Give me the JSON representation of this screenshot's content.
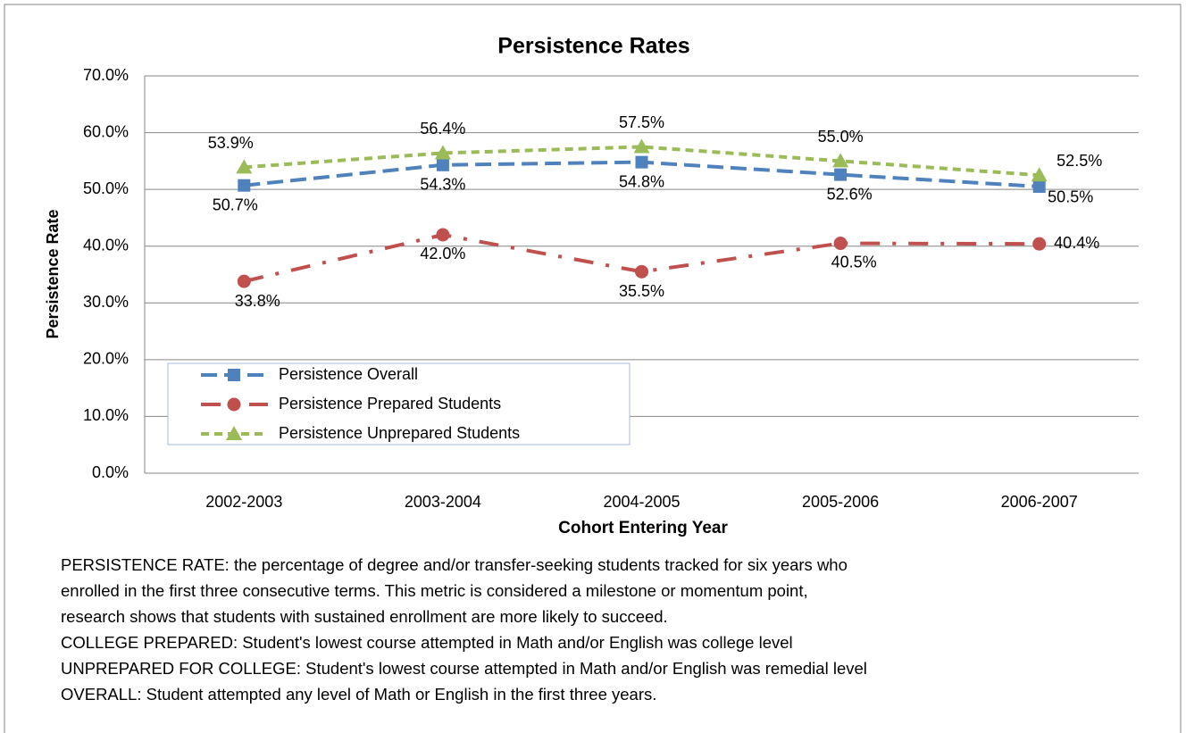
{
  "chart_data": {
    "type": "line",
    "title": "Persistence Rates",
    "y_label": "Persistence Rate",
    "x_label": "Cohort Entering Year",
    "categories": [
      "2002-2003",
      "2003-2004",
      "2004-2005",
      "2005-2006",
      "2006-2007"
    ],
    "series": [
      {
        "name": "Persistence Overall",
        "color": "#4f81bd",
        "values": [
          50.7,
          54.3,
          54.8,
          52.6,
          50.5
        ],
        "value_labels": [
          "50.7%",
          "54.3%",
          "54.8%",
          "52.6%",
          "50.5%"
        ]
      },
      {
        "name": "Persistence Prepared Students",
        "color": "#c0504d",
        "values": [
          33.8,
          42.0,
          35.5,
          40.5,
          40.4
        ],
        "value_labels": [
          "33.8%",
          "42.0%",
          "35.5%",
          "40.5%",
          "40.4%"
        ]
      },
      {
        "name": "Persistence Unprepared Students",
        "color": "#9bbb59",
        "values": [
          53.9,
          56.4,
          57.5,
          55.0,
          52.5
        ],
        "value_labels": [
          "53.9%",
          "56.4%",
          "57.5%",
          "55.0%",
          "52.5%"
        ]
      }
    ],
    "ylim": [
      0,
      70
    ],
    "yticks": [
      {
        "value": 0,
        "label": "0.0%"
      },
      {
        "value": 10,
        "label": "10.0%"
      },
      {
        "value": 20,
        "label": "20.0%"
      },
      {
        "value": 30,
        "label": "30.0%"
      },
      {
        "value": 40,
        "label": "40.0%"
      },
      {
        "value": 50,
        "label": "50.0%"
      },
      {
        "value": 60,
        "label": "60.0%"
      },
      {
        "value": 70,
        "label": "70.0%"
      }
    ],
    "grid": true,
    "legend": "lower left",
    "notes": [
      "PERSISTENCE RATE:  the percentage of degree and/or transfer-seeking students tracked for six years who",
      "enrolled in the first three consecutive terms.  This metric is considered a milestone or momentum point,",
      "research shows that students with sustained enrollment are more likely to succeed.",
      "COLLEGE PREPARED:  Student's lowest course attempted in Math and/or English was college level",
      "UNPREPARED FOR COLLEGE:  Student's lowest course attempted in Math and/or English was remedial level",
      "OVERALL:  Student attempted any level of Math or English in the first three years."
    ]
  }
}
